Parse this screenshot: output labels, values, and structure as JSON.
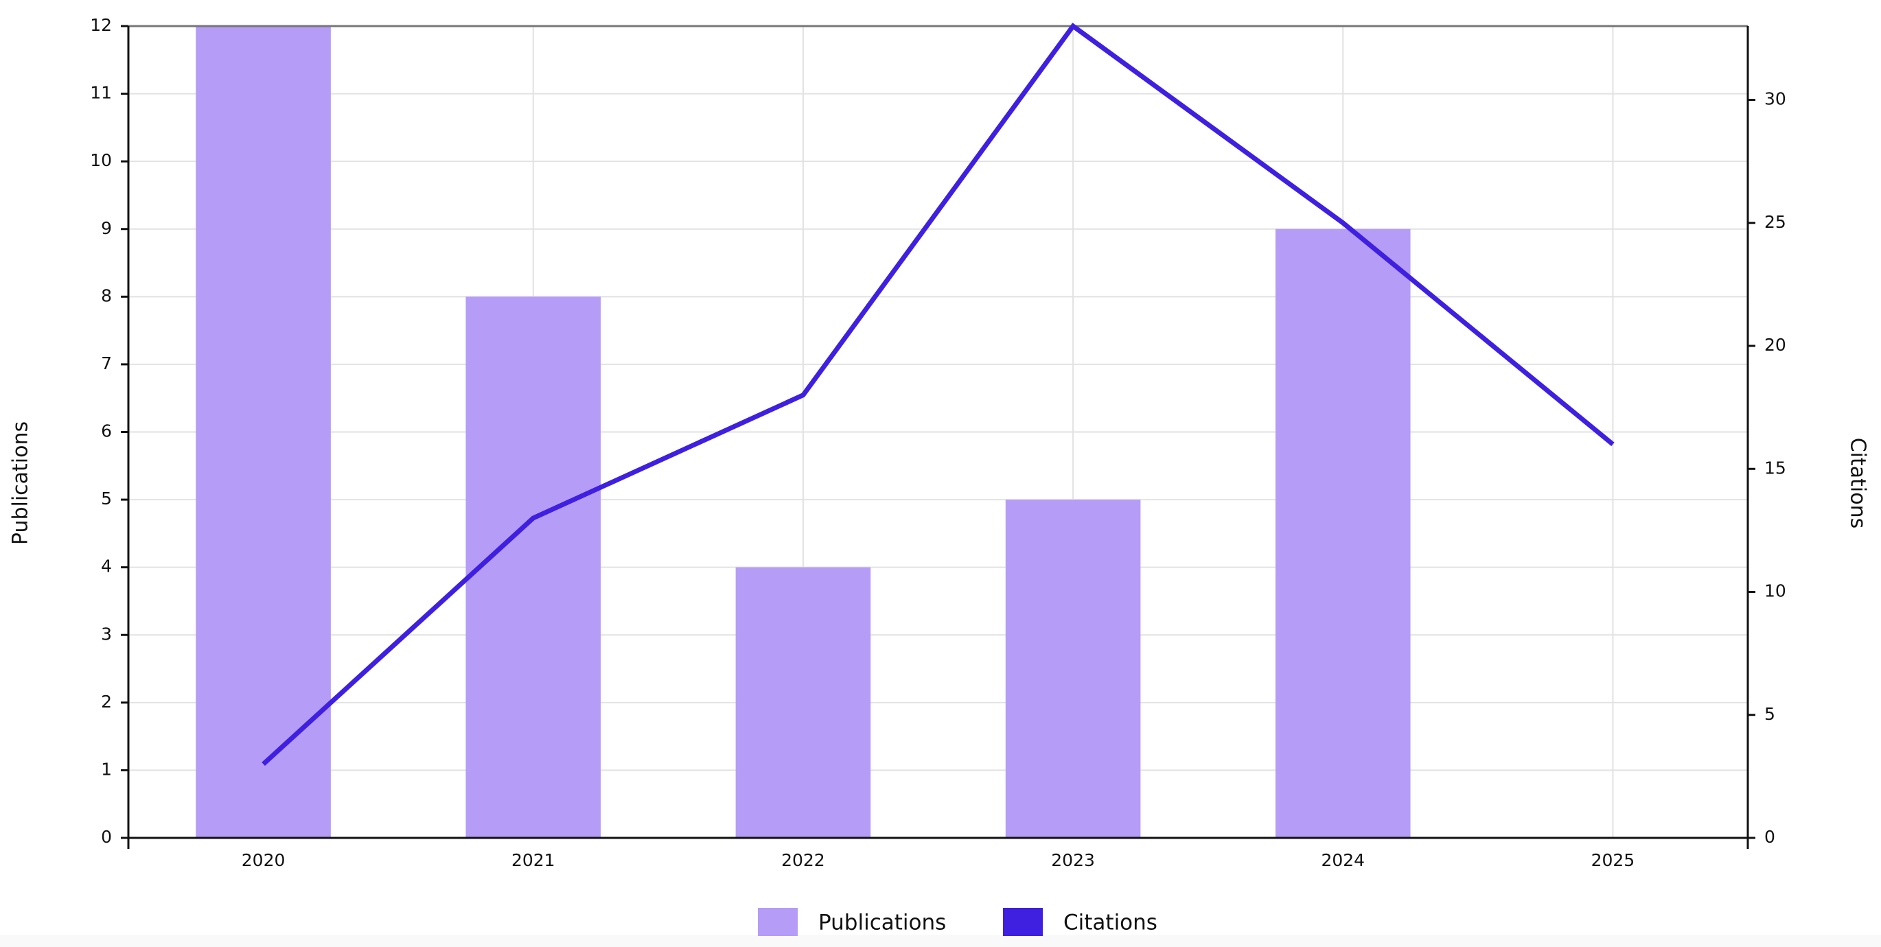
{
  "chart_data": {
    "type": "bar-line",
    "categories": [
      "2020",
      "2021",
      "2022",
      "2023",
      "2024",
      "2025"
    ],
    "y_label": "Publications",
    "y2_label": "Citations",
    "series": [
      {
        "name": "Publications",
        "type": "bar",
        "color": "#b49cf7",
        "values": [
          12,
          8,
          4,
          5,
          9,
          0
        ]
      },
      {
        "name": "Citations",
        "type": "line",
        "axis": "y2",
        "color": "#3f1fe0",
        "values": [
          3,
          13,
          18,
          33,
          25,
          16
        ]
      }
    ],
    "ylim": [
      0,
      12
    ],
    "yticks": [
      0,
      1,
      2,
      3,
      4,
      5,
      6,
      7,
      8,
      9,
      10,
      11,
      12
    ],
    "y2lim": [
      0,
      33
    ],
    "y2ticks": [
      0,
      5,
      10,
      15,
      20,
      25,
      30
    ],
    "grid": true,
    "legend": "bottom"
  }
}
